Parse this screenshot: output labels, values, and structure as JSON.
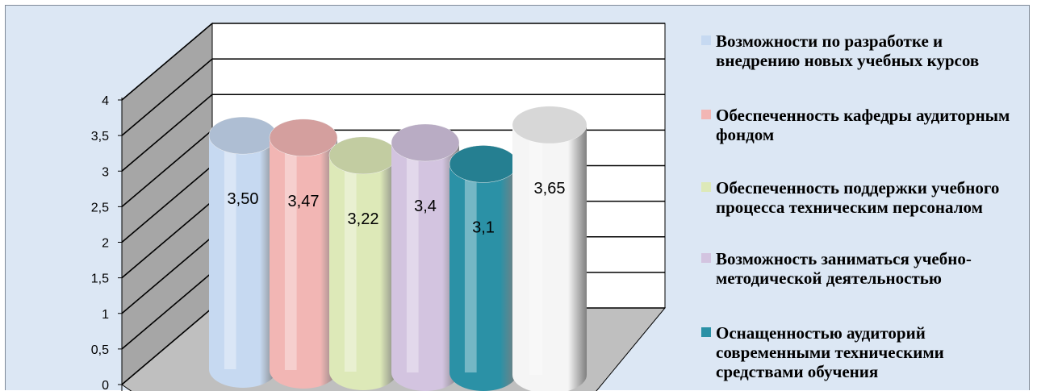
{
  "chart_data": {
    "type": "bar",
    "title": "",
    "xlabel": "",
    "ylabel": "",
    "ylim": [
      0,
      4
    ],
    "yticks": [
      "0",
      "0,5",
      "1",
      "1,5",
      "2",
      "2,5",
      "3",
      "3,5",
      "4"
    ],
    "grid": true,
    "bar_shape": "3d-cylinder",
    "legend_position": "right",
    "series": [
      {
        "name": "Возможности по разработке и внедрению новых учебных курсов",
        "value": 3.5,
        "label": "3,50",
        "color": "#c6d9f1"
      },
      {
        "name": "Обеспеченность кафедры аудиторным фондом",
        "value": 3.47,
        "label": "3,47",
        "color": "#f2b6b4"
      },
      {
        "name": "Обеспеченность поддержки учебного процесса техническим персоналом",
        "value": 3.22,
        "label": "3,22",
        "color": "#dde9b8"
      },
      {
        "name": "Возможность заниматься учебно-методической деятельностью",
        "value": 3.4,
        "label": "3,4",
        "color": "#d3c4e0"
      },
      {
        "name": "Оснащенностью аудиторий современными техническими средствами обучения",
        "value": 3.1,
        "label": "3,1",
        "color": "#2b91a6"
      },
      {
        "name": "",
        "value": 3.65,
        "label": "3,65",
        "color": "#f5f5f5"
      }
    ]
  }
}
